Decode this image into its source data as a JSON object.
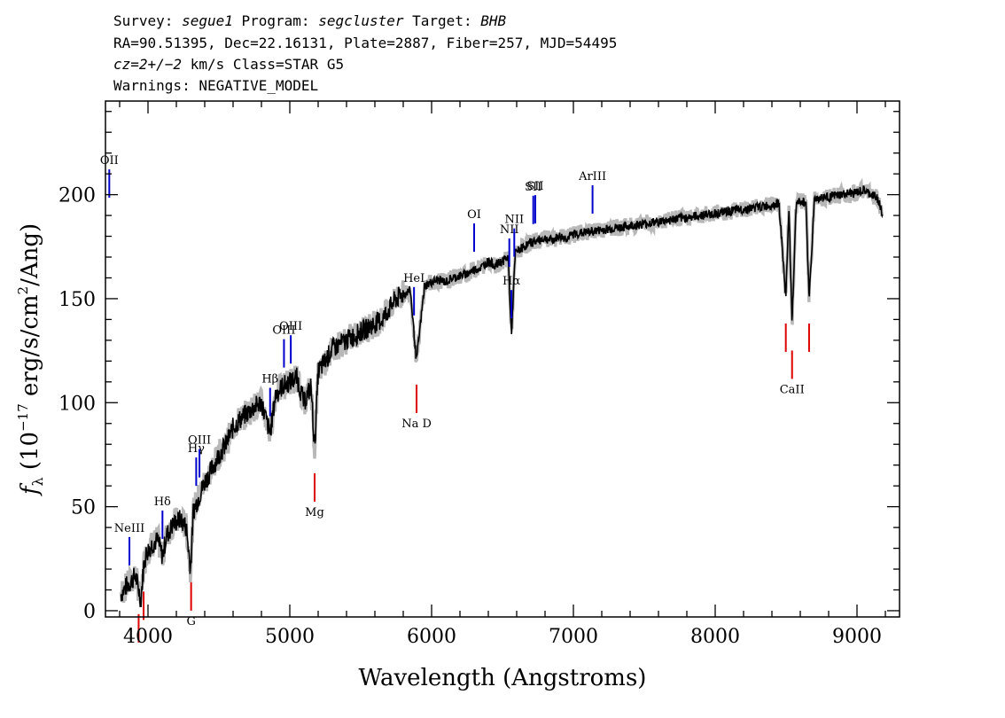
{
  "header": {
    "line1": [
      {
        "text": "Survey: ",
        "italic": false
      },
      {
        "text": "segue1",
        "italic": true
      },
      {
        "text": " Program: ",
        "italic": false
      },
      {
        "text": "segcluster",
        "italic": true
      },
      {
        "text": " Target: ",
        "italic": false
      },
      {
        "text": "BHB",
        "italic": true
      }
    ],
    "line2": "RA=90.51395, Dec=22.16131, Plate=2887, Fiber=257, MJD=54495",
    "line3": [
      {
        "text": "cz=2+/−2",
        "italic": true
      },
      {
        "text": " km/s Class=STAR G5",
        "italic": false
      }
    ],
    "line4": "Warnings: NEGATIVE_MODEL"
  },
  "chart_data": {
    "type": "line",
    "xlabel": "Wavelength (Angstroms)",
    "ylabel_parts": {
      "f": "f",
      "sub": "λ",
      "mid": " (10",
      "exp": "−17",
      "rest": " erg/s/cm",
      "exp2": "2",
      "end": "/Ang)"
    },
    "xlim": [
      3700,
      9300
    ],
    "ylim": [
      -3,
      245
    ],
    "x_ticks": [
      4000,
      5000,
      6000,
      7000,
      8000,
      9000
    ],
    "y_ticks": [
      0,
      50,
      100,
      150,
      200
    ],
    "colors": {
      "spectrum": "#000000",
      "model": "#b8b8b8",
      "emission": "#0000cc",
      "absorption": "#dd0000"
    },
    "spectrum": {
      "x": [
        3810,
        3850,
        3880,
        3910,
        3935,
        3950,
        3970,
        3990,
        4030,
        4070,
        4102,
        4130,
        4180,
        4230,
        4270,
        4300,
        4320,
        4360,
        4400,
        4450,
        4500,
        4550,
        4600,
        4650,
        4700,
        4750,
        4800,
        4861,
        4900,
        4950,
        5000,
        5050,
        5100,
        5150,
        5175,
        5200,
        5250,
        5300,
        5350,
        5400,
        5450,
        5500,
        5550,
        5600,
        5650,
        5700,
        5750,
        5800,
        5850,
        5893,
        5950,
        6000,
        6050,
        6100,
        6150,
        6200,
        6250,
        6300,
        6350,
        6400,
        6450,
        6500,
        6540,
        6563,
        6590,
        6650,
        6700,
        6750,
        6800,
        6850,
        6900,
        6950,
        7000,
        7100,
        7200,
        7300,
        7400,
        7500,
        7600,
        7700,
        7800,
        7900,
        8000,
        8100,
        8200,
        8300,
        8400,
        8450,
        8498,
        8520,
        8542,
        8570,
        8600,
        8640,
        8662,
        8700,
        8800,
        8900,
        9000,
        9050,
        9100,
        9150,
        9180
      ],
      "y": [
        8,
        12,
        14,
        17,
        10,
        5,
        22,
        28,
        32,
        34,
        26,
        36,
        42,
        44,
        40,
        20,
        48,
        55,
        62,
        68,
        75,
        80,
        88,
        92,
        95,
        98,
        100,
        85,
        104,
        108,
        110,
        112,
        100,
        108,
        78,
        115,
        120,
        126,
        128,
        130,
        132,
        134,
        136,
        138,
        140,
        145,
        150,
        152,
        154,
        120,
        156,
        158,
        159,
        158,
        160,
        161,
        162,
        164,
        165,
        168,
        166,
        168,
        170,
        132,
        172,
        175,
        177,
        178,
        179,
        178,
        180,
        179,
        181,
        182,
        183,
        184,
        185,
        186,
        187,
        188,
        189,
        190,
        191,
        192,
        193,
        194,
        195,
        196,
        150,
        194,
        137,
        195,
        197,
        196,
        150,
        198,
        199,
        200,
        201,
        202,
        200,
        198,
        190
      ]
    },
    "emission_lines": [
      {
        "label": "OII",
        "x": 3727
      },
      {
        "label": "NeIII",
        "x": 3869
      },
      {
        "label": "Hδ",
        "x": 4102
      },
      {
        "label": "Hγ",
        "x": 4340
      },
      {
        "label": "OIII",
        "x": 4363
      },
      {
        "label": "Hβ",
        "x": 4861
      },
      {
        "label": "OIII",
        "x": 4959
      },
      {
        "label": "OIII",
        "x": 5007
      },
      {
        "label": "HeI",
        "x": 5876
      },
      {
        "label": "OI",
        "x": 6300
      },
      {
        "label": "NII",
        "x": 6548
      },
      {
        "label": "Hα",
        "x": 6563
      },
      {
        "label": "NII",
        "x": 6583
      },
      {
        "label": "SII",
        "x": 6717
      },
      {
        "label": "SII",
        "x": 6731
      },
      {
        "label": "ArIII",
        "x": 7135
      }
    ],
    "absorption_lines": [
      {
        "label": "",
        "x": 3934
      },
      {
        "label": "",
        "x": 3969
      },
      {
        "label": "G",
        "x": 4304
      },
      {
        "label": "Mg",
        "x": 5175
      },
      {
        "label": "Na D",
        "x": 5894
      },
      {
        "label": "",
        "x": 8498
      },
      {
        "label": "CaII",
        "x": 8542
      },
      {
        "label": "",
        "x": 8662
      }
    ]
  }
}
